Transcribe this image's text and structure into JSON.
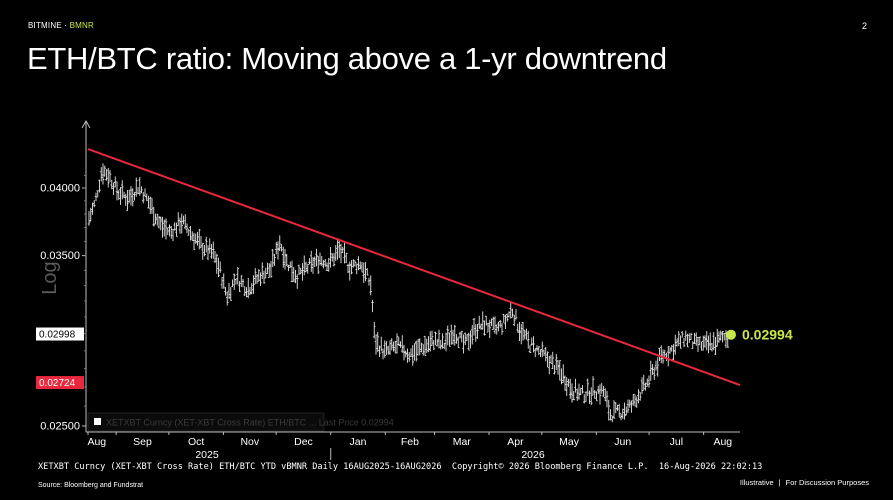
{
  "header": {
    "brand": "BITMINE",
    "brand_sep": " · ",
    "brand_accent": "BMNR",
    "page_number": "2"
  },
  "title": "ETH/BTC ratio: Moving above a 1-yr downtrend",
  "colors": {
    "trendline": "#e8283c",
    "current_marker": "#c8e84a",
    "tag_red": "#e8283c",
    "bars": "#e6e6e6"
  },
  "chart_data": {
    "type": "ohlc",
    "ylabel": "Log",
    "ylim": [
      0.0245,
      0.0435
    ],
    "log_scale": true,
    "y_ticks": [
      "0.04000",
      "0.03500",
      "0.02500"
    ],
    "y_tick_values": [
      0.04,
      0.035,
      0.025
    ],
    "price_tags": [
      {
        "label": "0.02998",
        "value": 0.02998,
        "style": "white"
      },
      {
        "label": "0.02724",
        "value": 0.02724,
        "style": "red"
      }
    ],
    "current_value_label": "0.02994",
    "current_value": 0.02994,
    "month_labels": [
      "Aug",
      "Sep",
      "Oct",
      "Nov",
      "Dec",
      "Jan",
      "Feb",
      "Mar",
      "Apr",
      "May",
      "Jun",
      "Jul",
      "Aug"
    ],
    "year_labels": [
      "2025",
      "2026"
    ],
    "legend_text": "XETXBT Curncy (XET-XBT Cross Rate) ETH/BTC ... Last Price  0.02994",
    "trendline": {
      "start_date": "2025-08-16",
      "start_value": 0.0432,
      "end_date": "2026-08-16",
      "end_value": 0.0273
    },
    "price_path": [
      [
        "2025-08-16",
        0.0375
      ],
      [
        "2025-08-20",
        0.0388
      ],
      [
        "2025-08-24",
        0.0415
      ],
      [
        "2025-08-28",
        0.041
      ],
      [
        "2025-09-02",
        0.0397
      ],
      [
        "2025-09-08",
        0.0392
      ],
      [
        "2025-09-14",
        0.0402
      ],
      [
        "2025-09-20",
        0.0388
      ],
      [
        "2025-09-26",
        0.0372
      ],
      [
        "2025-10-02",
        0.0366
      ],
      [
        "2025-10-08",
        0.0375
      ],
      [
        "2025-10-14",
        0.0365
      ],
      [
        "2025-10-20",
        0.0356
      ],
      [
        "2025-10-26",
        0.0352
      ],
      [
        "2025-10-30",
        0.034
      ],
      [
        "2025-11-03",
        0.0323
      ],
      [
        "2025-11-08",
        0.0335
      ],
      [
        "2025-11-15",
        0.0328
      ],
      [
        "2025-11-22",
        0.0337
      ],
      [
        "2025-11-28",
        0.0341
      ],
      [
        "2025-12-03",
        0.036
      ],
      [
        "2025-12-07",
        0.0346
      ],
      [
        "2025-12-13",
        0.0336
      ],
      [
        "2025-12-19",
        0.0342
      ],
      [
        "2025-12-26",
        0.0348
      ],
      [
        "2025-12-31",
        0.0345
      ],
      [
        "2026-01-06",
        0.0354
      ],
      [
        "2026-01-12",
        0.0342
      ],
      [
        "2026-01-18",
        0.0345
      ],
      [
        "2026-01-24",
        0.033
      ],
      [
        "2026-01-26",
        0.0296
      ],
      [
        "2026-02-01",
        0.0289
      ],
      [
        "2026-02-08",
        0.0293
      ],
      [
        "2026-02-15",
        0.0288
      ],
      [
        "2026-02-22",
        0.0292
      ],
      [
        "2026-03-01",
        0.0296
      ],
      [
        "2026-03-06",
        0.0293
      ],
      [
        "2026-03-12",
        0.0302
      ],
      [
        "2026-03-18",
        0.0293
      ],
      [
        "2026-03-24",
        0.0303
      ],
      [
        "2026-03-30",
        0.0306
      ],
      [
        "2026-04-05",
        0.0302
      ],
      [
        "2026-04-10",
        0.0307
      ],
      [
        "2026-04-14",
        0.0315
      ],
      [
        "2026-04-18",
        0.0304
      ],
      [
        "2026-04-24",
        0.0294
      ],
      [
        "2026-04-30",
        0.0289
      ],
      [
        "2026-05-06",
        0.0284
      ],
      [
        "2026-05-12",
        0.0278
      ],
      [
        "2026-05-18",
        0.0269
      ],
      [
        "2026-05-24",
        0.0266
      ],
      [
        "2026-05-30",
        0.0268
      ],
      [
        "2026-06-05",
        0.0268
      ],
      [
        "2026-06-09",
        0.0256
      ],
      [
        "2026-06-15",
        0.0257
      ],
      [
        "2026-06-21",
        0.026
      ],
      [
        "2026-06-25",
        0.0266
      ],
      [
        "2026-06-30",
        0.0272
      ],
      [
        "2026-07-03",
        0.0278
      ],
      [
        "2026-07-08",
        0.0287
      ],
      [
        "2026-07-13",
        0.029
      ],
      [
        "2026-07-18",
        0.0295
      ],
      [
        "2026-07-22",
        0.0298
      ],
      [
        "2026-07-27",
        0.0294
      ],
      [
        "2026-08-02",
        0.0293
      ],
      [
        "2026-08-08",
        0.0295
      ],
      [
        "2026-08-12",
        0.0298
      ],
      [
        "2026-08-16",
        0.02994
      ]
    ]
  },
  "footer": {
    "bloomberg_line": "XETXBT Curncy (XET-XBT Cross Rate) ETH/BTC YTD vBMNR Daily 16AUG2025-16AUG2026  Copyright© 2026 Bloomberg Finance L.P.  16-Aug-2026 22:02:13",
    "source": "Source: Bloomberg and Fundstrat",
    "disclaimer_left": "Illustrative",
    "disclaimer_sep": "|",
    "disclaimer_right": "For Discussion Purposes"
  }
}
